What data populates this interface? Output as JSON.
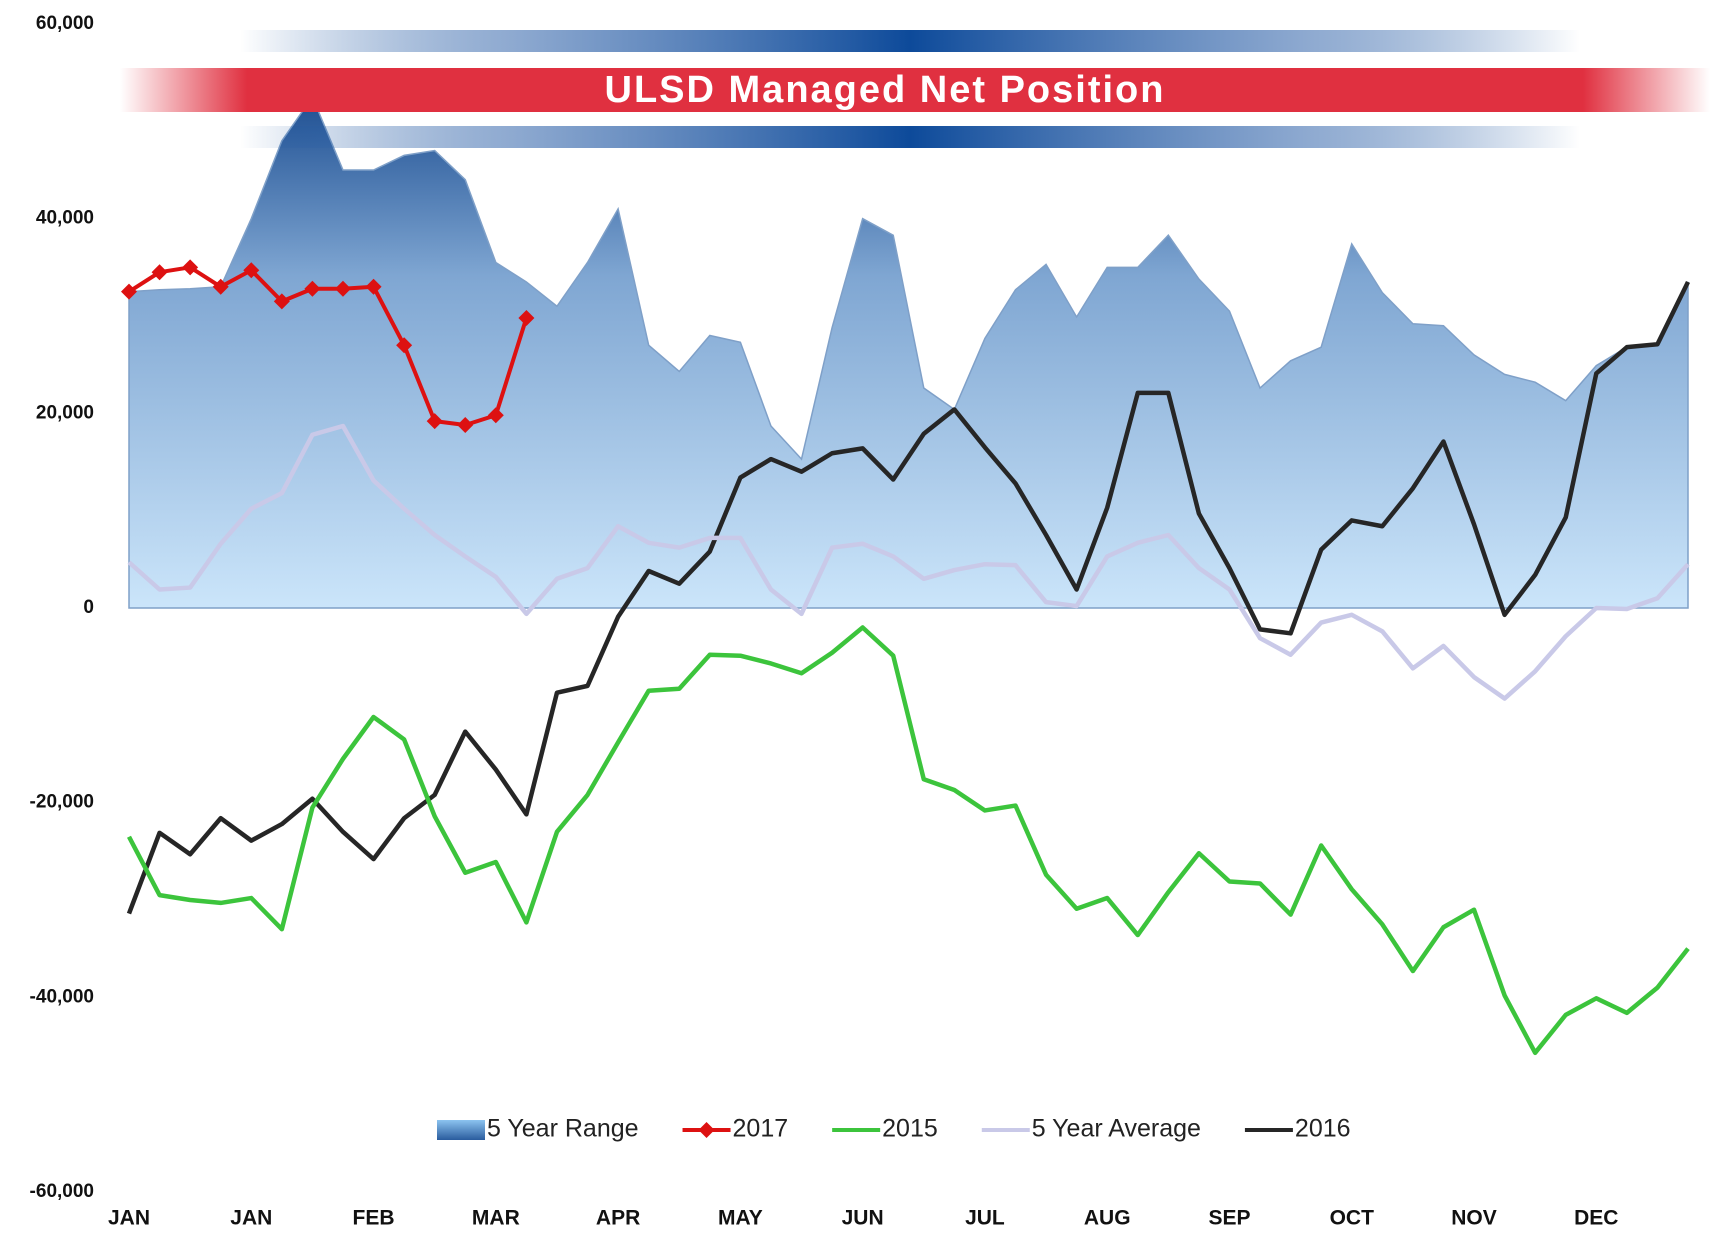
{
  "chart_data": {
    "type": "line",
    "title": "ULSD Managed Net Position",
    "categories": [
      "JAN",
      null,
      null,
      null,
      "JAN",
      null,
      null,
      null,
      "FEB",
      null,
      null,
      null,
      "MAR",
      null,
      null,
      null,
      "APR",
      null,
      null,
      null,
      "MAY",
      null,
      null,
      null,
      "JUN",
      null,
      null,
      null,
      "JUL",
      null,
      null,
      null,
      "AUG",
      null,
      null,
      null,
      "SEP",
      null,
      null,
      null,
      "OCT",
      null,
      null,
      null,
      "NOV",
      null,
      null,
      null,
      "DEC",
      null,
      null,
      null
    ],
    "ylim": [
      -60000,
      60000
    ],
    "yticks": [
      {
        "value": -60000,
        "label": "-60,000"
      },
      {
        "value": -40000,
        "label": "-40,000"
      },
      {
        "value": -20000,
        "label": "-20,000"
      },
      0,
      {
        "value": 20000,
        "label": "20,000"
      },
      {
        "value": 40000,
        "label": "40,000"
      },
      {
        "value": 60000,
        "label": "60,000"
      }
    ],
    "grid": false,
    "legend": "bottom",
    "series": [
      {
        "name": "5 Year Range",
        "style": "area",
        "color": "#2a5c9e",
        "values": [
          32500,
          32700,
          32800,
          33000,
          40000,
          48000,
          52500,
          45000,
          45000,
          46500,
          47000,
          44000,
          35500,
          33500,
          31000,
          35500,
          41000,
          27000,
          24300,
          28000,
          27300,
          18700,
          15300,
          28800,
          40000,
          38300,
          22600,
          20400,
          27700,
          32700,
          35300,
          29900,
          35000,
          35000,
          38300,
          33800,
          30500,
          22600,
          25400,
          26800,
          37400,
          32400,
          29200,
          29000,
          26000,
          24000,
          23200,
          21300,
          24900,
          26800,
          27000,
          33500
        ]
      },
      {
        "name": "2017",
        "style": "line",
        "marker": "diamond",
        "color": "#dd1111",
        "values": [
          32500,
          34500,
          35000,
          33000,
          34700,
          31500,
          32800,
          32800,
          33000,
          27000,
          19200,
          18800,
          19800,
          29800,
          null,
          null,
          null,
          null,
          null,
          null,
          null,
          null,
          null,
          null,
          null,
          null,
          null,
          null,
          null,
          null,
          null,
          null,
          null,
          null,
          null,
          null,
          null,
          null,
          null,
          null,
          null,
          null,
          null,
          null,
          null,
          null,
          null,
          null,
          null,
          null,
          null,
          null
        ]
      },
      {
        "name": "2015",
        "style": "line",
        "color": "#3cc43c",
        "values": [
          -23500,
          -29500,
          -30000,
          -30300,
          -29800,
          -33000,
          -20500,
          -15500,
          -11200,
          -13500,
          -21400,
          -27200,
          -26100,
          -32300,
          -23000,
          -19200,
          -13800,
          -8500,
          -8300,
          -4800,
          -4900,
          -5700,
          -6700,
          -4600,
          -2000,
          -4900,
          -17600,
          -18700,
          -20800,
          -20300,
          -27400,
          -30900,
          -29800,
          -33600,
          -29200,
          -25200,
          -28100,
          -28300,
          -31500,
          -24400,
          -28900,
          -32500,
          -37300,
          -32800,
          -31000,
          -39800,
          -45700,
          -41800,
          -40100,
          -41600,
          -39000,
          -35000
        ]
      },
      {
        "name": "5 Year Average",
        "style": "line",
        "color": "#c9c9e8",
        "values": [
          4700,
          1900,
          2100,
          6600,
          10200,
          11800,
          17800,
          18700,
          13100,
          10200,
          7500,
          5300,
          3200,
          -600,
          3000,
          4100,
          8400,
          6700,
          6200,
          7200,
          7200,
          1900,
          -600,
          6200,
          6600,
          5300,
          3000,
          3900,
          4500,
          4400,
          600,
          200,
          5300,
          6700,
          7500,
          4100,
          1900,
          -3100,
          -4800,
          -1500,
          -700,
          -2400,
          -6200,
          -3900,
          -7100,
          -9300,
          -6500,
          -2900,
          0,
          -100,
          1000,
          4500
        ]
      },
      {
        "name": "2016",
        "style": "line",
        "color": "#262626",
        "values": [
          -31400,
          -23100,
          -25300,
          -21600,
          -23900,
          -22200,
          -19600,
          -23000,
          -25800,
          -21600,
          -19200,
          -12700,
          -16600,
          -21200,
          -8700,
          -8000,
          -900,
          3800,
          2500,
          5800,
          13400,
          15300,
          14000,
          15900,
          16400,
          13200,
          17900,
          20400,
          16500,
          12800,
          7500,
          1900,
          10300,
          22100,
          22100,
          9700,
          4100,
          -2200,
          -2600,
          6000,
          9000,
          8400,
          12300,
          17100,
          8600,
          -700,
          3400,
          9300,
          24100,
          26800,
          27100,
          33500
        ]
      }
    ]
  }
}
